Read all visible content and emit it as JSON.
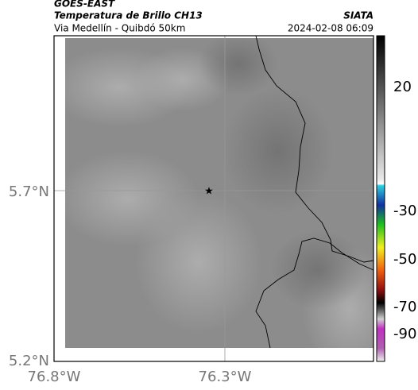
{
  "header": {
    "source": "GOES-EAST",
    "title": "Temperatura de Brillo CH13",
    "subtitle": "Via Medellín - Quibdó 50km",
    "agency": "SIATA",
    "timestamp": "2024-02-08 06:09"
  },
  "map": {
    "lat_labels": [
      "5.7°N",
      "5.2°N"
    ],
    "lon_labels": [
      "76.8°W",
      "76.3°W"
    ]
  },
  "colorbar": {
    "tick_labels": [
      "20",
      "-30",
      "-50",
      "-70",
      "-90"
    ]
  }
}
